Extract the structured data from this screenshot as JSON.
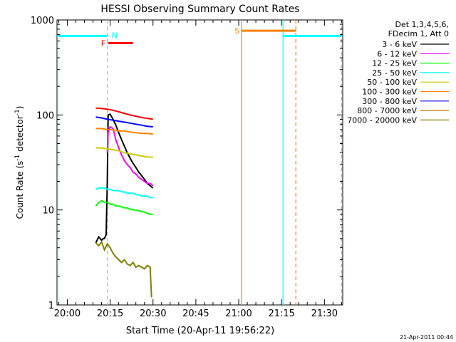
{
  "chart_data": {
    "type": "line",
    "title": "HESSI Observing Summary Count Rates",
    "xlabel": "Start Time (20-Apr-11 19:56:22)",
    "ylabel": "Count Rate (s",
    "ylabel_sup1": "-1",
    "ylabel_mid": " detector",
    "ylabel_sup2": "-1",
    "ylabel_end": ")",
    "y_scale": "log",
    "xlim_minutes": [
      -3.6,
      96.4
    ],
    "x_origin_label": "20:00",
    "ylim": [
      1,
      1000
    ],
    "x_ticks": [
      {
        "t": 0,
        "label": "20:00"
      },
      {
        "t": 15,
        "label": "20:15"
      },
      {
        "t": 30,
        "label": "20:30"
      },
      {
        "t": 45,
        "label": "20:45"
      },
      {
        "t": 60,
        "label": "21:00"
      },
      {
        "t": 75,
        "label": "21:15"
      },
      {
        "t": 90,
        "label": "21:30"
      }
    ],
    "y_ticks": [
      {
        "v": 1,
        "label": "1"
      },
      {
        "v": 10,
        "label": "10"
      },
      {
        "v": 100,
        "label": "100"
      },
      {
        "v": 1000,
        "label": "1000"
      }
    ],
    "legend": {
      "header": [
        "Det 1,3,4,5,6,",
        "FDecim 1, Att 0"
      ],
      "position": "right"
    },
    "series": [
      {
        "name": "3 - 6 keV",
        "color": "#000000",
        "x": [
          10,
          11,
          12,
          12.6,
          13,
          13.6,
          14,
          14.3,
          15,
          16,
          17,
          18,
          19,
          20,
          21,
          22,
          23,
          24,
          25,
          26,
          27,
          28,
          29,
          30
        ],
        "y": [
          4.5,
          5.2,
          4.8,
          5,
          5,
          5.5,
          20,
          100,
          102,
          90,
          78,
          65,
          55,
          47,
          40,
          35,
          31,
          28,
          25,
          23,
          21,
          19,
          18,
          17
        ]
      },
      {
        "name": "6 - 12 keV",
        "color": "#ff00ff",
        "x": [
          14,
          14.3,
          15,
          16,
          17,
          18,
          19,
          20,
          21,
          22,
          23,
          24,
          25,
          26,
          27,
          28,
          29,
          30
        ],
        "y": [
          40,
          65,
          75,
          72,
          55,
          45,
          38,
          33,
          30,
          28,
          25,
          24,
          22,
          21,
          20,
          19,
          19,
          18
        ]
      },
      {
        "name": "12 - 25 keV",
        "color": "#00ff00",
        "x": [
          10,
          11,
          12,
          13,
          14,
          15,
          16,
          17,
          18,
          19,
          20,
          21,
          22,
          23,
          24,
          25,
          26,
          27,
          28,
          29,
          30
        ],
        "y": [
          11,
          12,
          12.5,
          12,
          12,
          11.5,
          11.5,
          11,
          11,
          10.8,
          10.5,
          10.5,
          10.2,
          10,
          10,
          9.8,
          9.6,
          9.5,
          9.2,
          9,
          9
        ]
      },
      {
        "name": "25 - 50 keV",
        "color": "#00ffff",
        "x": [
          10,
          11,
          12,
          13,
          14,
          15,
          16,
          17,
          18,
          19,
          20,
          21,
          22,
          23,
          24,
          25,
          26,
          27,
          28,
          29,
          30
        ],
        "y": [
          16.5,
          17,
          17,
          17,
          16.5,
          16.5,
          16,
          16,
          16,
          15.5,
          15.5,
          15,
          15,
          15,
          14.5,
          14.5,
          14,
          14,
          14,
          13.5,
          13.5
        ]
      },
      {
        "name": "50 - 100 keV",
        "color": "#cccc00",
        "x": [
          10,
          12,
          14,
          16,
          18,
          20,
          22,
          24,
          26,
          28,
          30
        ],
        "y": [
          45,
          45,
          44,
          43,
          42,
          40,
          39,
          38,
          37,
          36,
          36
        ]
      },
      {
        "name": "100 - 300 keV",
        "color": "#ff8000",
        "x": [
          10,
          12,
          14,
          16,
          18,
          20,
          22,
          24,
          26,
          28,
          30
        ],
        "y": [
          72,
          72,
          70,
          70,
          68,
          68,
          66,
          65,
          64,
          64,
          63
        ]
      },
      {
        "name": "300 - 800 keV",
        "color": "#0000ff",
        "x": [
          10,
          12,
          14,
          16,
          18,
          20,
          22,
          24,
          26,
          28,
          30
        ],
        "y": [
          95,
          93,
          90,
          88,
          86,
          84,
          82,
          80,
          78,
          76,
          75
        ]
      },
      {
        "name": "800 - 7000 keV",
        "color": "#cc7700",
        "x": [],
        "y": []
      },
      {
        "name": "7000 - 20000 keV",
        "color": "#808000",
        "x": [
          10,
          11,
          12,
          13,
          14,
          15,
          16,
          17,
          18,
          19,
          20,
          21,
          22,
          23,
          24,
          25,
          26,
          27,
          28,
          29,
          29.5
        ],
        "y": [
          4.5,
          4.2,
          4.6,
          3.8,
          4.4,
          4,
          3.5,
          3.2,
          3,
          2.8,
          3,
          2.7,
          2.6,
          2.8,
          2.5,
          2.6,
          2.5,
          2.4,
          2.6,
          2.5,
          1.2
        ]
      }
    ],
    "series_red_top": {
      "color": "#ff0000",
      "x": [
        10,
        12,
        14,
        16,
        18,
        20,
        22,
        24,
        26,
        28,
        30
      ],
      "y": [
        118,
        117,
        115,
        112,
        108,
        104,
        100,
        97,
        94,
        92,
        90
      ]
    },
    "annotations": [
      {
        "label": "N",
        "color": "#00ffff",
        "x": 14,
        "y": 680,
        "x_end": 14,
        "kind": "marker"
      },
      {
        "label": "F",
        "color": "#ff0000",
        "x": 14.3,
        "y": 570,
        "x_end": 23,
        "kind": "bar"
      },
      {
        "label": "S",
        "color": "#ff8000",
        "x": 61,
        "y": 770,
        "x_end": 80,
        "kind": "bar"
      }
    ],
    "eclipse_bars": [
      {
        "color": "#00ffff",
        "x_start": -3.6,
        "x_end": 14,
        "y": 680
      },
      {
        "color": "#00ffff",
        "x_start": 75.5,
        "x_end": 96,
        "y": 680
      }
    ],
    "vertical_lines": [
      {
        "x": -3.4,
        "color": "#00ffff",
        "style": "solid"
      },
      {
        "x": 14,
        "color": "#00ffff",
        "style": "dashed"
      },
      {
        "x": 61,
        "color": "#ff8000",
        "style": "solid"
      },
      {
        "x": 75.5,
        "color": "#00ffff",
        "style": "solid"
      },
      {
        "x": 80,
        "color": "#ff8000",
        "style": "dashed"
      },
      {
        "x": 96,
        "color": "#00ffff",
        "style": "dashed"
      }
    ]
  },
  "timestamp": "21-Apr-2011 00:44"
}
